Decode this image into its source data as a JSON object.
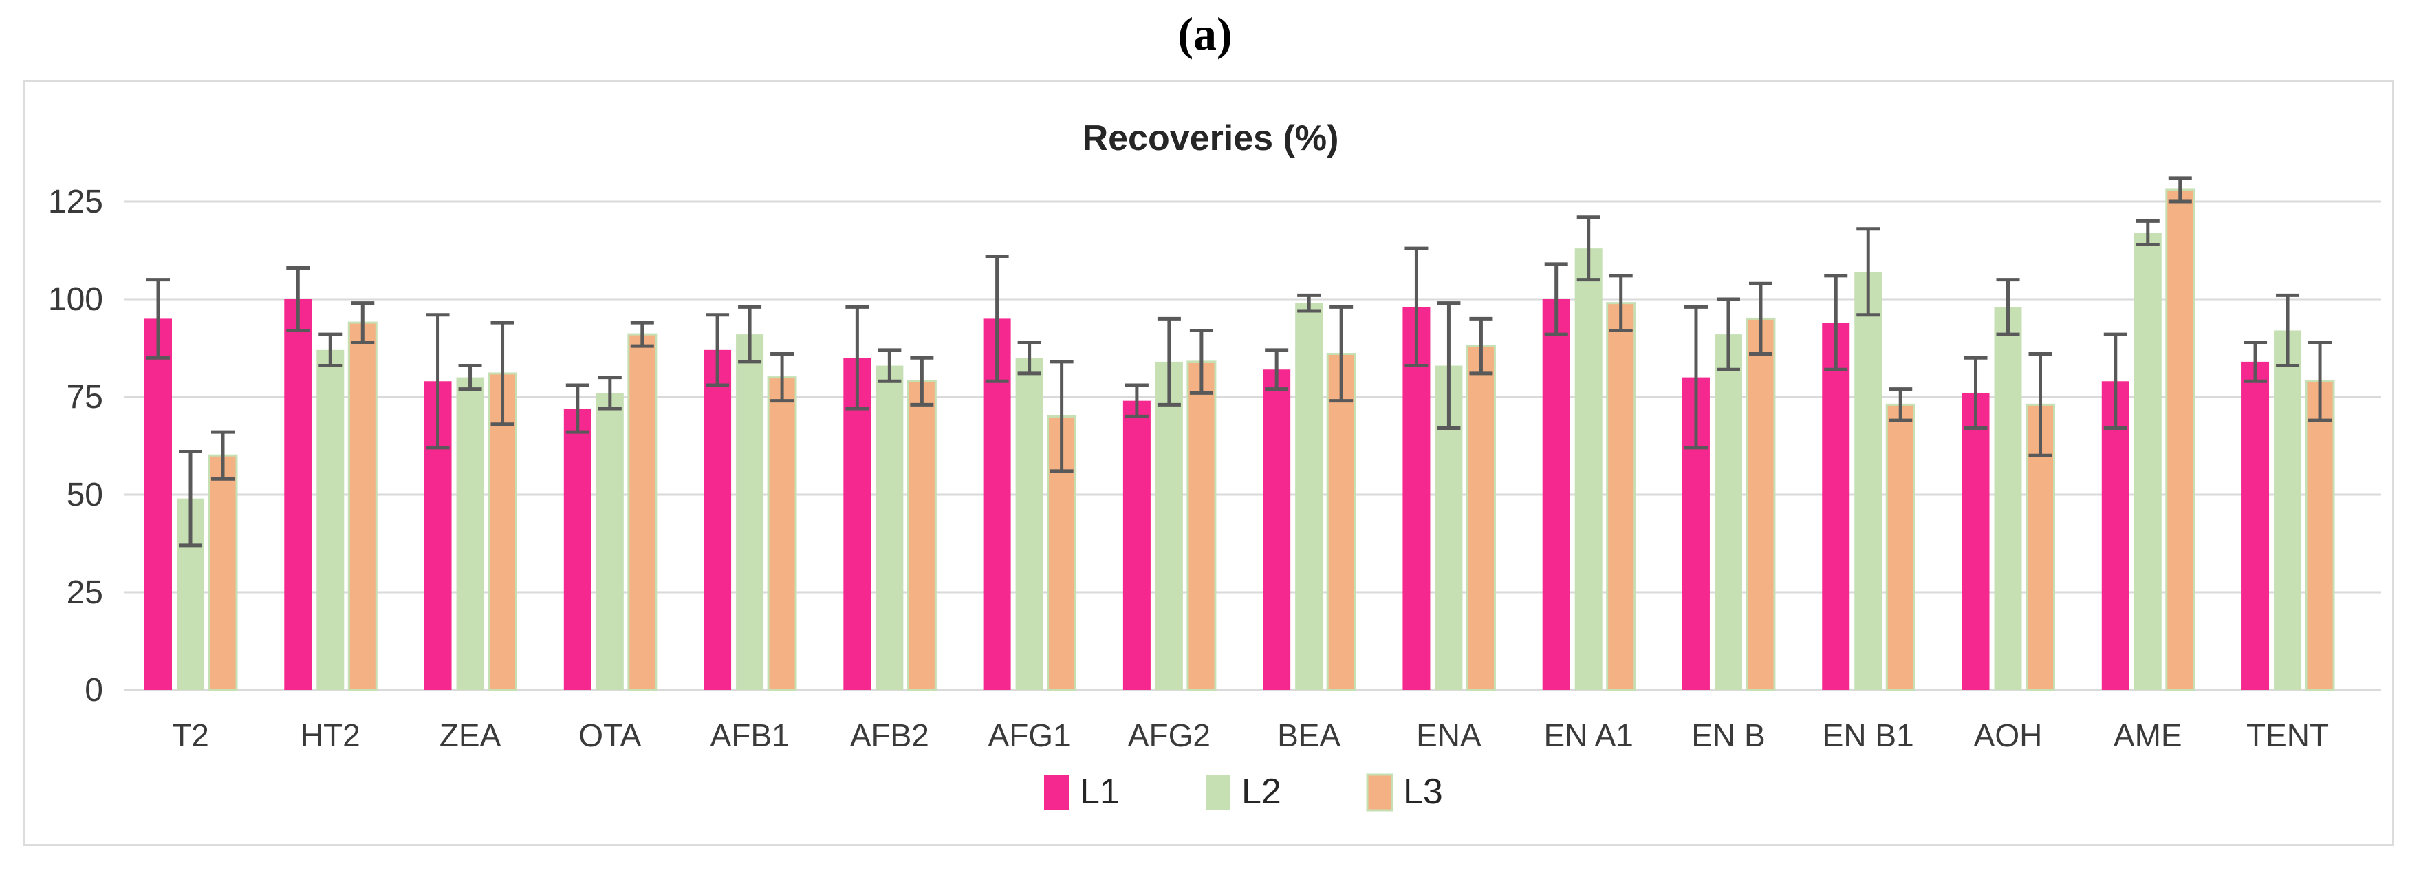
{
  "figure_label": "(a)",
  "chart": {
    "title": "Recoveries (%)"
  },
  "chart_data": {
    "type": "bar",
    "title": "Recoveries (%)",
    "categories": [
      "T2",
      "HT2",
      "ZEA",
      "OTA",
      "AFB1",
      "AFB2",
      "AFG1",
      "AFG2",
      "BEA",
      "ENA",
      "EN A1",
      "EN B",
      "EN B1",
      "AOH",
      "AME",
      "TENT"
    ],
    "series": [
      {
        "name": "L1",
        "color": "#f5288f",
        "values": [
          95,
          100,
          79,
          72,
          87,
          85,
          95,
          74,
          82,
          98,
          100,
          80,
          94,
          76,
          79,
          84
        ],
        "errors": [
          10,
          8,
          17,
          6,
          9,
          13,
          16,
          4,
          5,
          15,
          9,
          18,
          12,
          9,
          12,
          5
        ]
      },
      {
        "name": "L2",
        "color": "#c6e0b4",
        "values": [
          49,
          87,
          80,
          76,
          91,
          83,
          85,
          84,
          99,
          83,
          113,
          91,
          107,
          98,
          117,
          92
        ],
        "errors": [
          12,
          4,
          3,
          4,
          7,
          4,
          4,
          11,
          2,
          16,
          8,
          9,
          11,
          7,
          3,
          9
        ]
      },
      {
        "name": "L3",
        "color": "#f4b183",
        "outline": "#c6e0b4",
        "values": [
          60,
          94,
          81,
          91,
          80,
          79,
          70,
          84,
          86,
          88,
          99,
          95,
          73,
          73,
          128,
          79
        ],
        "errors": [
          6,
          5,
          13,
          3,
          6,
          6,
          14,
          8,
          12,
          7,
          7,
          9,
          4,
          13,
          3,
          10
        ]
      }
    ],
    "ylim": [
      0,
      125
    ],
    "yticks": [
      0,
      25,
      50,
      75,
      100,
      125
    ],
    "grid": true,
    "legend_position": "bottom-center",
    "style": {
      "gridline_color": "#dadada",
      "axis_text_color": "#3a3a3a",
      "error_bar_color": "#595959",
      "title_color": "#262626"
    }
  }
}
